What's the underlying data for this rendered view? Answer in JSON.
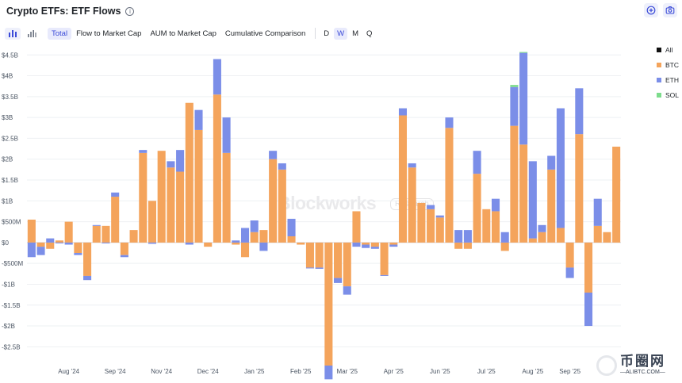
{
  "header": {
    "title": "Crypto ETFs: ETF Flows",
    "info_glyph": "i",
    "add_icon": "plus-circle-icon",
    "camera_icon": "camera-icon"
  },
  "toolbar": {
    "chart_type_icons": [
      "bar-chart-icon",
      "column-chart-icon"
    ],
    "modes": [
      "Total",
      "Flow to Market Cap",
      "AUM to Market Cap",
      "Cumulative Comparison"
    ],
    "active_mode": "Total",
    "periods": [
      "D",
      "W",
      "M",
      "Q"
    ],
    "active_period": "W"
  },
  "watermark": {
    "brand": "Blockworks",
    "tag": "Research"
  },
  "corner_logo": {
    "main": "币圈网",
    "sub": "—ALIBTC.COM—"
  },
  "legend": [
    {
      "name": "All",
      "color": "#111111"
    },
    {
      "name": "BTC",
      "color": "#f4a45c"
    },
    {
      "name": "ETH",
      "color": "#7b8ee8"
    },
    {
      "name": "SOL",
      "color": "#7ddc8c"
    }
  ],
  "chart_data": {
    "type": "bar",
    "stacked": true,
    "ylim": [
      -2.95,
      4.6
    ],
    "yticks": [
      -2.5,
      -2,
      -1.5,
      -1,
      -0.5,
      0,
      0.5,
      1,
      1.5,
      2,
      2.5,
      3,
      3.5,
      4,
      4.5
    ],
    "ytick_labels": [
      "-$2.5B",
      "-$2B",
      "-$1.5B",
      "-$1B",
      "-$500M",
      "$0",
      "$500M",
      "$1B",
      "$1.5B",
      "$2B",
      "$2.5B",
      "$3B",
      "$3.5B",
      "$4B",
      "$4.5B"
    ],
    "x_labels": [
      {
        "label": "Aug '24",
        "week": 4
      },
      {
        "label": "Sep '24",
        "week": 9
      },
      {
        "label": "Nov '24",
        "week": 14
      },
      {
        "label": "Dec '24",
        "week": 19
      },
      {
        "label": "Jan '25",
        "week": 24
      },
      {
        "label": "Feb '25",
        "week": 29
      },
      {
        "label": "Mar '25",
        "week": 34
      },
      {
        "label": "Apr '25",
        "week": 39
      },
      {
        "label": "Jun '25",
        "week": 44
      },
      {
        "label": "Jul '25",
        "week": 49
      },
      {
        "label": "Aug '25",
        "week": 54
      },
      {
        "label": "Sep '25",
        "week": 58
      }
    ],
    "grid": true,
    "legend_position": "right",
    "series": [
      {
        "name": "BTC",
        "color": "#f4a45c",
        "values": [
          0.55,
          -0.1,
          -0.15,
          0.05,
          0.5,
          -0.25,
          -0.8,
          0.4,
          0.4,
          1.1,
          -0.3,
          0.3,
          2.15,
          1.0,
          2.2,
          1.8,
          1.7,
          3.35,
          2.7,
          -0.1,
          3.55,
          2.15,
          -0.05,
          -0.35,
          0.25,
          0.3,
          2.0,
          1.75,
          0.15,
          -0.05,
          -0.6,
          -0.6,
          -2.95,
          -0.85,
          -1.05,
          0.75,
          -0.05,
          -0.1,
          -0.78,
          -0.05,
          3.05,
          1.8,
          0.95,
          0.8,
          0.6,
          2.75,
          -0.15,
          -0.15,
          1.65,
          0.8,
          0.75,
          -0.2,
          2.8,
          2.35,
          0.1,
          0.25,
          1.75,
          0.35,
          -0.6,
          2.6,
          -1.2,
          0.4,
          0.25,
          2.3
        ]
      },
      {
        "name": "ETH",
        "color": "#7b8ee8",
        "values": [
          -0.35,
          -0.2,
          0.1,
          -0.02,
          -0.05,
          -0.05,
          -0.1,
          0.02,
          -0.02,
          0.1,
          -0.05,
          0.0,
          0.07,
          -0.03,
          0.0,
          0.15,
          0.52,
          -0.05,
          0.48,
          0.0,
          0.85,
          0.85,
          0.05,
          0.35,
          0.28,
          -0.2,
          0.2,
          0.15,
          0.42,
          0.0,
          -0.02,
          -0.03,
          -0.33,
          -0.12,
          -0.2,
          -0.1,
          -0.08,
          -0.05,
          -0.02,
          -0.05,
          0.17,
          0.1,
          0.0,
          0.1,
          0.05,
          0.25,
          0.3,
          0.3,
          0.55,
          0.0,
          0.3,
          0.25,
          0.93,
          2.2,
          1.85,
          0.17,
          0.33,
          2.87,
          -0.25,
          1.1,
          -0.8,
          0.65,
          0.0,
          0.0
        ]
      },
      {
        "name": "SOL",
        "color": "#7ddc8c",
        "values": [
          0,
          0,
          0,
          0,
          0,
          0,
          0,
          0,
          0,
          0,
          0,
          0,
          0,
          0,
          0,
          0,
          0,
          0,
          0,
          0,
          0,
          0,
          0,
          0,
          0,
          0,
          0,
          0,
          0,
          0,
          0,
          0,
          0,
          0,
          0,
          0,
          0,
          0,
          0,
          0,
          0,
          0,
          0,
          0,
          0,
          0,
          0,
          0,
          0,
          0,
          0,
          0,
          0.05,
          0.02,
          0,
          0,
          0,
          0,
          0,
          0,
          0,
          0,
          0,
          0
        ]
      }
    ]
  }
}
